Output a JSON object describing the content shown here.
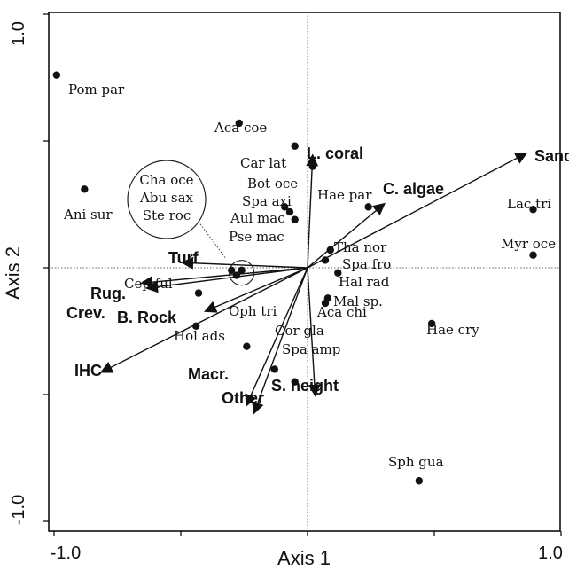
{
  "chart_data": {
    "type": "scatter",
    "subtype": "ordination-biplot",
    "xlabel": "Axis 1",
    "ylabel": "Axis 2",
    "xlim": [
      -1.0,
      1.0
    ],
    "ylim": [
      -1.0,
      1.0
    ],
    "x_tick_labels": [
      "-1.0",
      "1.0"
    ],
    "y_tick_labels": [
      "1.0",
      "-1.0"
    ],
    "reference_lines": {
      "x": 0,
      "y": 0,
      "style": "dotted"
    },
    "colors": {
      "axes": "#000000",
      "points": "#111111",
      "text": "#111111"
    },
    "species": [
      {
        "label": "Pom par",
        "x": -0.99,
        "y": 0.76
      },
      {
        "label": "Ani sur",
        "x": -0.88,
        "y": 0.31
      },
      {
        "label": "Aca coe",
        "x": -0.27,
        "y": 0.57
      },
      {
        "label": "Car lat",
        "x": -0.05,
        "y": 0.48
      },
      {
        "label": "Bot oce",
        "x": 0.02,
        "y": 0.4
      },
      {
        "label": "Spa axi",
        "x": -0.09,
        "y": 0.24
      },
      {
        "label": "Aul mac",
        "x": -0.07,
        "y": 0.22
      },
      {
        "label": "Pse mac",
        "x": -0.05,
        "y": 0.19
      },
      {
        "label": "Hae par",
        "x": 0.24,
        "y": 0.24
      },
      {
        "label": "Lac tri",
        "x": 0.89,
        "y": 0.23
      },
      {
        "label": "Myr oce",
        "x": 0.89,
        "y": 0.05
      },
      {
        "label": "Tha nor",
        "x": 0.09,
        "y": 0.07
      },
      {
        "label": "Spa fro",
        "x": 0.07,
        "y": 0.03
      },
      {
        "label": "Hal rad",
        "x": 0.12,
        "y": -0.02
      },
      {
        "label": "Mal sp.",
        "x": 0.08,
        "y": -0.12
      },
      {
        "label": "Aca chi",
        "x": 0.07,
        "y": -0.14
      },
      {
        "label": "Hae cry",
        "x": 0.49,
        "y": -0.22
      },
      {
        "label": "Sph gua",
        "x": 0.44,
        "y": -0.84
      },
      {
        "label": "Cep ful",
        "x": -0.43,
        "y": -0.1
      },
      {
        "label": "Hol ads",
        "x": -0.44,
        "y": -0.23
      },
      {
        "label": "Oph tri",
        "x": -0.24,
        "y": -0.31
      },
      {
        "label": "Cor gla",
        "x": -0.13,
        "y": -0.4
      },
      {
        "label": "Spa amp",
        "x": -0.05,
        "y": -0.45
      },
      {
        "label": "Cha oce",
        "x": -0.3,
        "y": -0.01
      },
      {
        "label": "Abu sax",
        "x": -0.28,
        "y": -0.03
      },
      {
        "label": "Ste roc",
        "x": -0.26,
        "y": -0.01
      }
    ],
    "circle_group": {
      "members": [
        "Cha oce",
        "Abu sax",
        "Ste roc"
      ],
      "x": -0.26,
      "y": -0.02
    },
    "vectors": [
      {
        "label": "Sand",
        "x": 0.86,
        "y": 0.45
      },
      {
        "label": "C. algae",
        "x": 0.3,
        "y": 0.25
      },
      {
        "label": "L. coral",
        "x": 0.02,
        "y": 0.44
      },
      {
        "label": "Turf",
        "x": -0.49,
        "y": 0.02
      },
      {
        "label": "Rug.",
        "x": -0.65,
        "y": -0.06
      },
      {
        "label": "Crev.",
        "x": -0.63,
        "y": -0.08
      },
      {
        "label": "B. Rock",
        "x": -0.4,
        "y": -0.17
      },
      {
        "label": "IHC",
        "x": -0.81,
        "y": -0.41
      },
      {
        "label": "Macr.",
        "x": -0.24,
        "y": -0.54
      },
      {
        "label": "Other",
        "x": -0.21,
        "y": -0.57
      },
      {
        "label": "S. height",
        "x": 0.03,
        "y": -0.5
      }
    ]
  }
}
